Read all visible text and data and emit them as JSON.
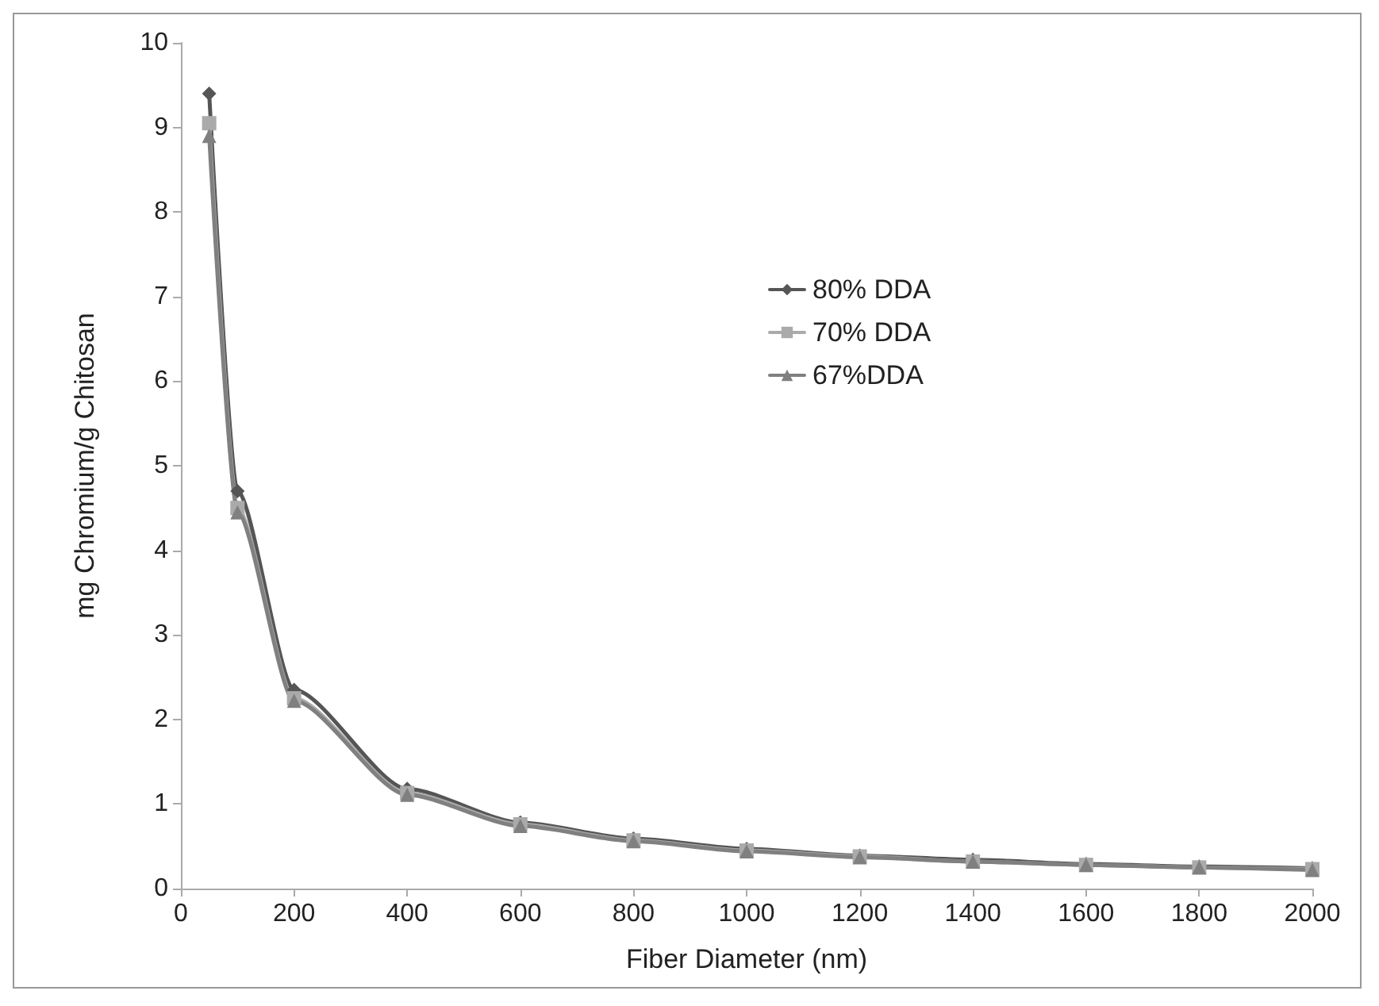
{
  "chart_data": {
    "type": "line",
    "xlabel": "Fiber Diameter (nm)",
    "ylabel": "mg Chromium/g Chitosan",
    "x": [
      50,
      100,
      200,
      400,
      600,
      800,
      1000,
      1200,
      1400,
      1600,
      1800,
      2000
    ],
    "series": [
      {
        "name": "80% DDA",
        "color": "#555555",
        "marker": "diamond",
        "values": [
          9.4,
          4.7,
          2.35,
          1.18,
          0.78,
          0.59,
          0.47,
          0.39,
          0.34,
          0.29,
          0.26,
          0.24
        ]
      },
      {
        "name": "70% DDA",
        "color": "#aaaaaa",
        "marker": "square",
        "values": [
          9.05,
          4.5,
          2.25,
          1.13,
          0.76,
          0.57,
          0.45,
          0.38,
          0.32,
          0.28,
          0.25,
          0.23
        ]
      },
      {
        "name": "67%DDA",
        "color": "#808080",
        "marker": "triangle",
        "values": [
          8.9,
          4.45,
          2.22,
          1.11,
          0.74,
          0.56,
          0.44,
          0.37,
          0.32,
          0.28,
          0.25,
          0.22
        ]
      }
    ],
    "xlim": [
      0,
      2000
    ],
    "xticks": [
      0,
      200,
      400,
      600,
      800,
      1000,
      1200,
      1400,
      1600,
      1800,
      2000
    ],
    "ylim": [
      0,
      10
    ],
    "yticks": [
      0,
      1,
      2,
      3,
      4,
      5,
      6,
      7,
      8,
      9,
      10
    ],
    "grid": false,
    "legend": "top right",
    "line_style": "solid"
  }
}
